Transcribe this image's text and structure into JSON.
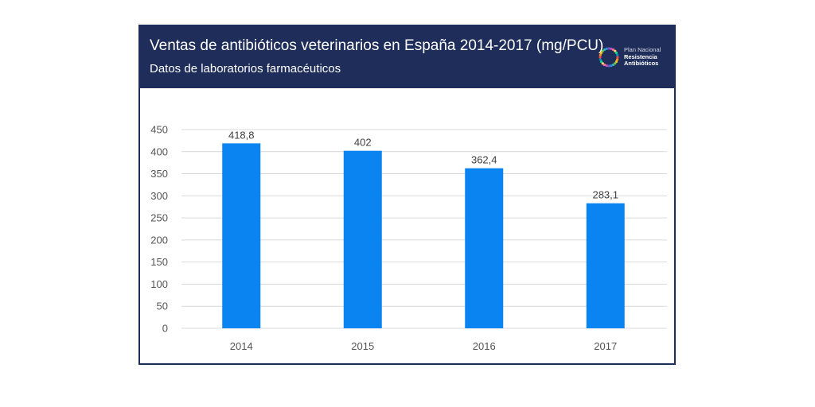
{
  "header": {
    "title": "Ventas de antibióticos veterinarios en España 2014-2017 (mg/PCU)",
    "subtitle": "Datos de laboratorios farmacéuticos",
    "logo": {
      "line1": "Plan Nacional",
      "line2": "Resistencia",
      "line3": "Antibióticos"
    }
  },
  "colors": {
    "header_bg": "#1f2d5a",
    "bar": "#0a84f0",
    "grid": "#d9d9d9"
  },
  "chart_data": {
    "type": "bar",
    "title": "Ventas de antibióticos veterinarios en España 2014-2017 (mg/PCU)",
    "subtitle": "Datos de laboratorios farmacéuticos",
    "categories": [
      "2014",
      "2015",
      "2016",
      "2017"
    ],
    "values": [
      418.8,
      402,
      362.4,
      283.1
    ],
    "data_labels": [
      "418,8",
      "402",
      "362,4",
      "283,1"
    ],
    "yticks": [
      "0",
      "50",
      "100",
      "150",
      "200",
      "250",
      "300",
      "350",
      "400",
      "450"
    ],
    "ylim": [
      0,
      450
    ],
    "xlabel": "",
    "ylabel": "",
    "grid": true,
    "legend": "none"
  }
}
